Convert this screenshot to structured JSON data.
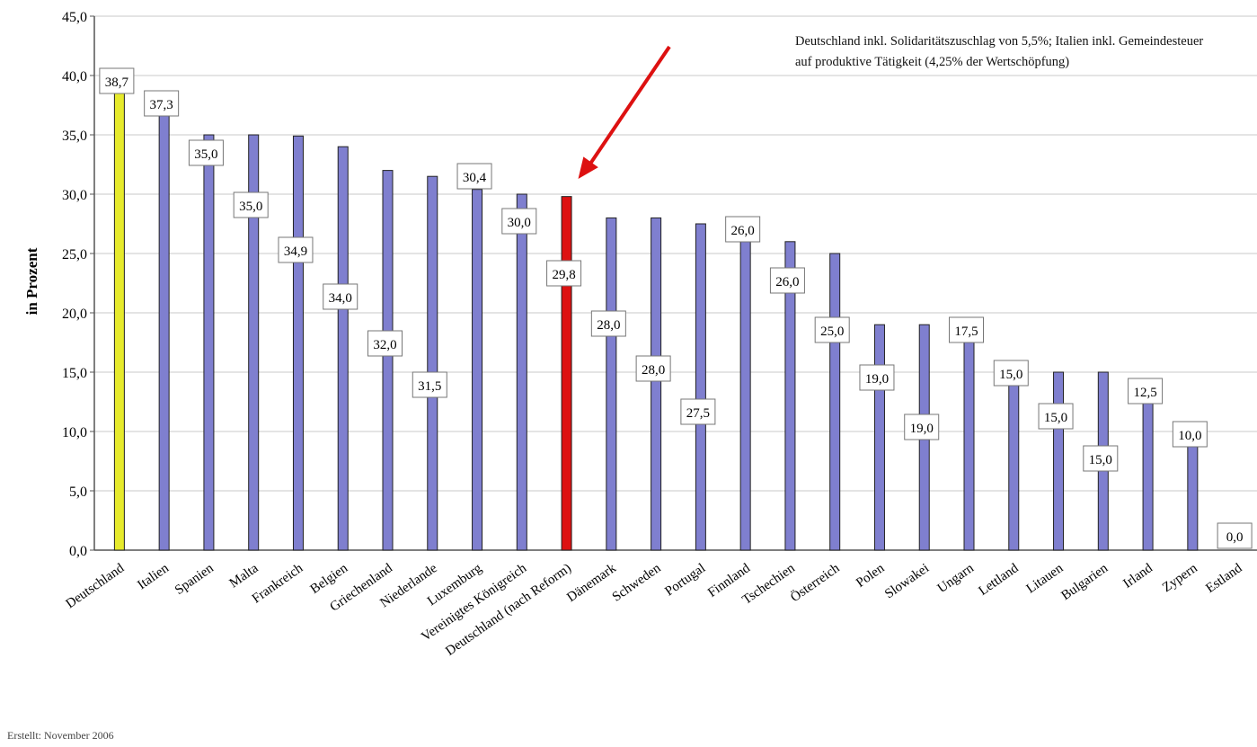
{
  "chart_data": {
    "type": "bar",
    "ylabel": "in Prozent",
    "ylim": [
      0,
      45
    ],
    "ytick_step": 5,
    "ytick_labels": [
      "0,0",
      "5,0",
      "10,0",
      "15,0",
      "20,0",
      "25,0",
      "30,0",
      "35,0",
      "40,0",
      "45,0"
    ],
    "grid": true,
    "categories": [
      "Deutschland",
      "Italien",
      "Spanien",
      "Malta",
      "Frankreich",
      "Belgien",
      "Griechenland",
      "Niederlande",
      "Luxemburg",
      "Vereinigtes Königreich",
      "Deutschland (nach Reform)",
      "Dänemark",
      "Schweden",
      "Portugal",
      "Finnland",
      "Tschechien",
      "Österreich",
      "Polen",
      "Slowakei",
      "Ungarn",
      "Lettland",
      "Litauen",
      "Bulgarien",
      "Irland",
      "Zypern",
      "Estland"
    ],
    "values": [
      38.7,
      37.3,
      35.0,
      35.0,
      34.9,
      34.0,
      32.0,
      31.5,
      30.4,
      30.0,
      29.8,
      28.0,
      28.0,
      27.5,
      26.0,
      26.0,
      25.0,
      19.0,
      19.0,
      17.5,
      15.0,
      15.0,
      15.0,
      12.5,
      10.0,
      0.0
    ],
    "data_labels": [
      "38,7",
      "37,3",
      "35,0",
      "35,0",
      "34,9",
      "34,0",
      "32,0",
      "31,5",
      "30,4",
      "30,0",
      "29,8",
      "28,0",
      "28,0",
      "27,5",
      "26,0",
      "26,0",
      "25,0",
      "19,0",
      "19,0",
      "17,5",
      "15,0",
      "15,0",
      "15,0",
      "12,5",
      "10,0",
      "0,0"
    ],
    "bar_colors": {
      "default": "#7f7fcf",
      "highlight_first": "#e6ea2c",
      "highlight_reform": "#dd1111"
    },
    "annotation": "Deutschland inkl. Solidaritätszuschlag von 5,5%; Italien inkl. Gemeindesteuer auf produktive Tätigkeit (4,25% der Wertschöpfung)"
  },
  "footer": {
    "text": "Erstellt: November 2006"
  }
}
